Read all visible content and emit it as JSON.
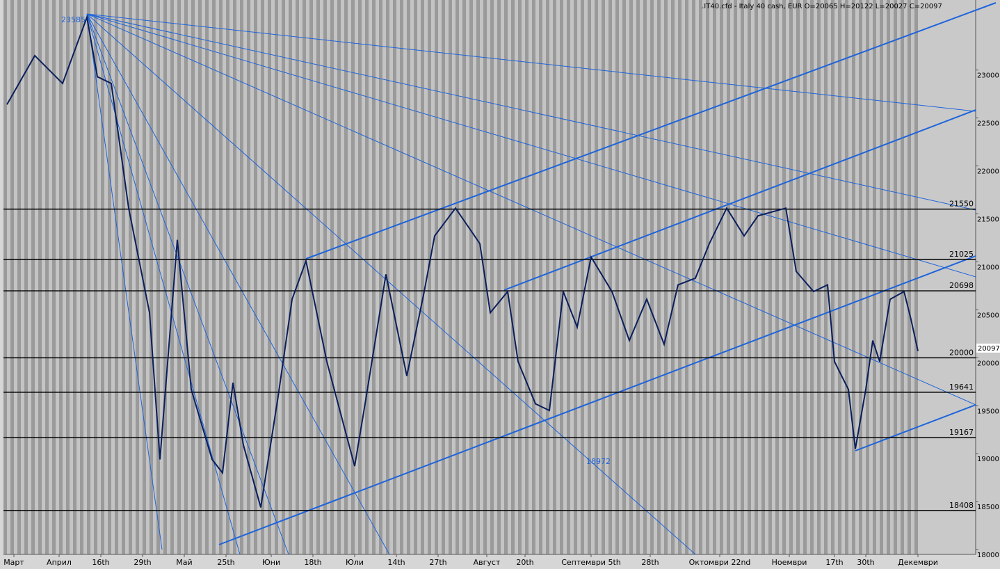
{
  "chart_data": {
    "type": "line",
    "title": ".IT40.cfd - Italy 40 cash, EUR O=20065 H=20122 L=20027 C=20097",
    "x": [
      1,
      9,
      17,
      24,
      27,
      31,
      36,
      42,
      45,
      50,
      54,
      60,
      63,
      66,
      69,
      74,
      79,
      83,
      87,
      93,
      101,
      104,
      110,
      116,
      121,
      124,
      130,
      137,
      140,
      145,
      148,
      153,
      157,
      161,
      165,
      169,
      175,
      180,
      185,
      190,
      194,
      199,
      203,
      208,
      213,
      217,
      225,
      228,
      233,
      237,
      239,
      243,
      245,
      248,
      250,
      252,
      255,
      259,
      261,
      263
    ],
    "values": [
      22640,
      23150,
      22860,
      23550,
      22930,
      22860,
      21560,
      20470,
      18940,
      21230,
      19670,
      18940,
      18800,
      19740,
      19090,
      18440,
      19600,
      20610,
      21010,
      19960,
      18870,
      19520,
      20870,
      19810,
      20690,
      21270,
      21560,
      21190,
      20470,
      20690,
      19960,
      19520,
      19450,
      20690,
      20320,
      21050,
      20690,
      20180,
      20610,
      20140,
      20760,
      20830,
      21190,
      21560,
      21270,
      21480,
      21560,
      20900,
      20690,
      20760,
      19960,
      19670,
      19050,
      19670,
      20180,
      19960,
      20610,
      20690,
      20400,
      20070
    ],
    "color": "#0a1f5c",
    "xlim": [
      0,
      280
    ],
    "ylim": [
      17950,
      23730
    ],
    "xticks": [
      {
        "value": 3,
        "label": "Март"
      },
      {
        "value": 16,
        "label": "Април"
      },
      {
        "value": 28,
        "label": "16th"
      },
      {
        "value": 40,
        "label": "29th"
      },
      {
        "value": 52,
        "label": "Май"
      },
      {
        "value": 64,
        "label": "25th"
      },
      {
        "value": 77,
        "label": "Юни"
      },
      {
        "value": 89,
        "label": "18th"
      },
      {
        "value": 101,
        "label": "Юли"
      },
      {
        "value": 113,
        "label": "14th"
      },
      {
        "value": 125,
        "label": "27th"
      },
      {
        "value": 139,
        "label": "Август"
      },
      {
        "value": 150,
        "label": "20th"
      },
      {
        "value": 169,
        "label": "Септември 5th"
      },
      {
        "value": 186,
        "label": "28th"
      },
      {
        "value": 206,
        "label": "Октомври 22nd"
      },
      {
        "value": 226,
        "label": "Ноември"
      },
      {
        "value": 239,
        "label": "17th"
      },
      {
        "value": 248,
        "label": "30th"
      },
      {
        "value": 263,
        "label": "Декември"
      }
    ],
    "yticks": [
      18000,
      18500,
      19000,
      19500,
      20000,
      20500,
      21000,
      21500,
      22000,
      22500,
      23000
    ],
    "levels": [
      21550,
      21025,
      20698,
      20000,
      19641,
      19167,
      18408
    ],
    "level_color": "#000000",
    "last_price": 20097,
    "annotations": [
      "23585",
      "18972"
    ]
  }
}
